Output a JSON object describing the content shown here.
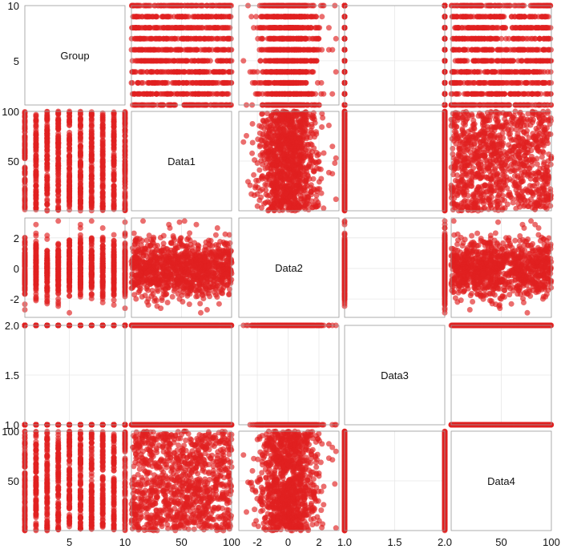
{
  "chart_data": {
    "type": "scatter-matrix",
    "variables": [
      "Group",
      "Data1",
      "Data2",
      "Data3",
      "Data4"
    ],
    "ranges": {
      "Group": [
        1,
        10
      ],
      "Data1": [
        0,
        100
      ],
      "Data2": [
        -3.2,
        3.3
      ],
      "Data3": [
        1.0,
        2.0
      ],
      "Data4": [
        0,
        100
      ]
    },
    "ticks": {
      "Group": [
        "5",
        "10"
      ],
      "Data1": [
        "50",
        "100"
      ],
      "Data2": [
        "-2",
        "0",
        "2"
      ],
      "Data3": [
        "1.0",
        "1.5",
        "2.0"
      ],
      "Data4": [
        "50",
        "100"
      ]
    },
    "tick_values": {
      "Group": [
        5,
        10
      ],
      "Data1": [
        50,
        100
      ],
      "Data2": [
        -2,
        0,
        2
      ],
      "Data3": [
        1.0,
        1.5,
        2.0
      ],
      "Data4": [
        50,
        100
      ]
    },
    "groups": [
      1,
      2,
      3,
      4,
      5,
      6,
      7,
      8,
      9,
      10
    ],
    "data3_levels": [
      1,
      2
    ],
    "points_per_group": 100,
    "grid": true,
    "legend": "none",
    "marker_color": "#e02020",
    "marker_opacity": 0.65
  }
}
